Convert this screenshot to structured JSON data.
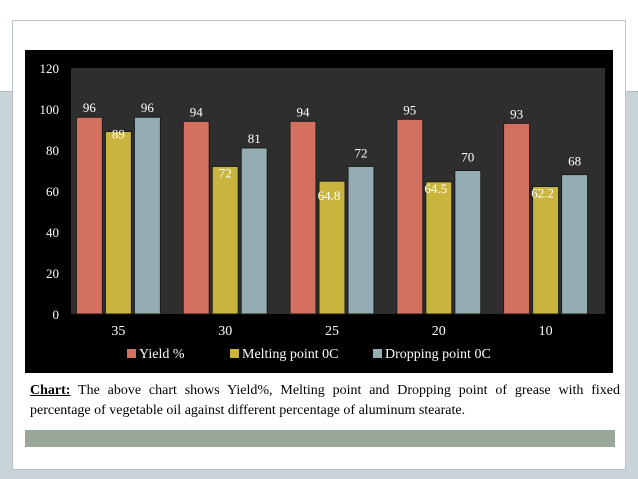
{
  "chart_data": {
    "type": "bar",
    "categories": [
      "35",
      "30",
      "25",
      "20",
      "10"
    ],
    "series": [
      {
        "name": "Yield %",
        "values": [
          96,
          94,
          94,
          95,
          93
        ],
        "value_labels": [
          "96",
          "94",
          "94",
          "95",
          "93"
        ],
        "color": "#d4705f"
      },
      {
        "name": "Melting point 0C",
        "values": [
          89,
          72,
          64.8,
          64.5,
          62.2
        ],
        "value_labels": [
          "89",
          "72",
          "64.8",
          "64.5",
          "62.2"
        ],
        "color": "#c9b43d"
      },
      {
        "name": "Dropping point 0C",
        "values": [
          96,
          81,
          72,
          70,
          68
        ],
        "value_labels": [
          "96",
          "81",
          "72",
          "70",
          "68"
        ],
        "color": "#94adb3"
      }
    ],
    "y_ticks": [
      "0",
      "20",
      "40",
      "60",
      "80",
      "100",
      "120"
    ],
    "ylim": [
      0,
      120
    ],
    "legend_position": "bottom",
    "grid": false,
    "title": "",
    "xlabel": "",
    "ylabel": ""
  },
  "caption": {
    "label": "Chart:",
    "text": " The above chart shows Yield%, Melting point and Dropping point of grease with fixed percentage of vegetable oil against different percentage of aluminum stearate."
  },
  "colors": {
    "chart_background": "#000000",
    "plot_background": "#2e2e2e",
    "label_text": "#ffffff",
    "panel_background": "#c9d4d8"
  }
}
